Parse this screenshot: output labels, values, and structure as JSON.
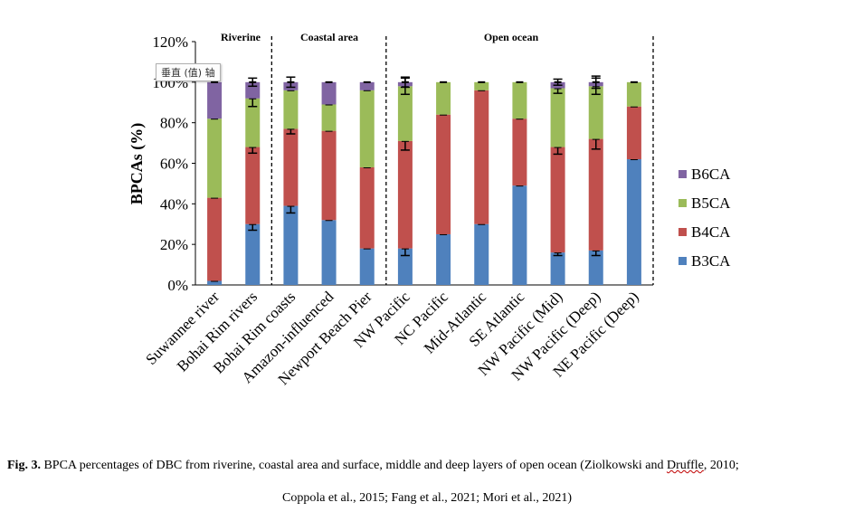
{
  "tooltip": "垂直 (值) 轴",
  "chart_data": {
    "type": "bar",
    "stacked": true,
    "ylabel": "BPCAs (%)",
    "xlabel": "",
    "ylim": [
      0,
      120
    ],
    "yticks": [
      "0%",
      "20%",
      "40%",
      "60%",
      "80%",
      "100%",
      "120%"
    ],
    "categories": [
      "Suwannee river",
      "Bohai Rim rivers",
      "Bohai Rim coasts",
      "Amazon-influenced",
      "Newport Beach Pier",
      "NW Pacific",
      "NC Pacific",
      "Mid-Atlantic",
      "SE Atlantic",
      "NW Pacific (Mid)",
      "NW Pacific (Deep)",
      "NE Pacific (Deep)"
    ],
    "groups": [
      {
        "label": "Riverine",
        "span": [
          0,
          1
        ]
      },
      {
        "label": "Coastal area",
        "span": [
          2,
          4
        ]
      },
      {
        "label": "Open ocean",
        "span": [
          5,
          11
        ]
      }
    ],
    "series": [
      {
        "name": "B3CA",
        "color": "#4f81bd",
        "values": [
          2,
          30,
          39,
          32,
          18,
          18,
          25,
          30,
          49,
          16,
          17,
          62
        ],
        "err": [
          0,
          3,
          3.5,
          0,
          0,
          3.5,
          0,
          0,
          0,
          1.5,
          2.5,
          0
        ]
      },
      {
        "name": "B4CA",
        "color": "#c0504d",
        "values": [
          41,
          38,
          38,
          44,
          40,
          53,
          59,
          66,
          33,
          52,
          55,
          26
        ],
        "err": [
          0,
          3,
          2.5,
          0,
          0,
          4.5,
          0,
          0,
          0,
          3.5,
          5,
          0
        ]
      },
      {
        "name": "B5CA",
        "color": "#9bbb59",
        "values": [
          39,
          24,
          19,
          13,
          38,
          27,
          16,
          4,
          18,
          29,
          26,
          12
        ],
        "err": [
          0,
          4,
          0,
          0,
          0,
          4,
          0,
          0,
          0,
          2.5,
          4,
          0
        ]
      },
      {
        "name": "B6CA",
        "color": "#8064a2",
        "values": [
          18,
          8,
          4,
          11,
          4,
          2,
          0,
          0,
          0,
          3,
          2,
          0
        ],
        "err": [
          0,
          2,
          2.5,
          0,
          0,
          2.5,
          0,
          0,
          0,
          1.5,
          3,
          0
        ]
      }
    ],
    "legend_order": [
      "B6CA",
      "B5CA",
      "B4CA",
      "B3CA"
    ],
    "legend_position": "right"
  },
  "caption": {
    "fig_label": "Fig. 3.",
    "line1_text": " BPCA percentages of DBC from riverine, coastal area and surface, middle and deep layers of open ocean (Ziolkowski and ",
    "line1_wavy": "Druffle",
    "line1_end": ", 2010;",
    "line2": "Coppola et al., 2015; Fang et al., 2021; Mori et al., 2021)"
  }
}
